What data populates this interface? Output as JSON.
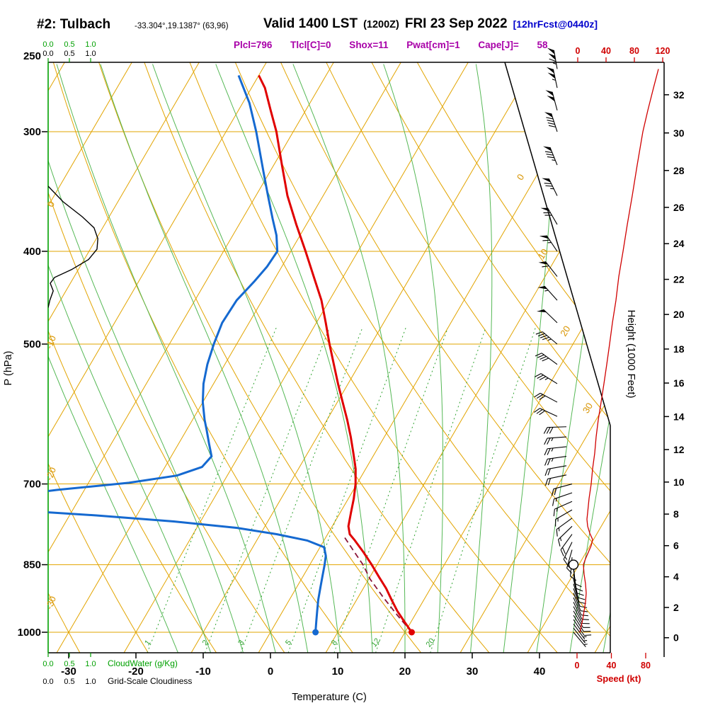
{
  "header": {
    "station": "#2: Tulbach",
    "coords": "-33.304°,19.1387° (63,96)",
    "valid": "Valid 1400 LST",
    "valid_z": "(1200Z)",
    "valid_date": "FRI 23 Sep 2022",
    "fcst_tag": "[12hrFcst@0440z]",
    "params": "Plcl=796 Tlcl[C]=0 Shox=11 Pwat[cm]=1 Cape[J]= 58"
  },
  "colors": {
    "grid_orange": "#E2A400",
    "label_orange": "#D89400",
    "moist_green": "#55B855",
    "mix_green": "#33A433",
    "axis_green": "#00A000",
    "temp_red": "#E00000",
    "dewp_blue": "#1569D0",
    "parcel": "#8A1538",
    "speed_red": "#D00000",
    "magenta": "#A800A8",
    "fcst_blue": "#0000CC",
    "black": "#000000"
  },
  "axes": {
    "pressure_label": "P (hPa)",
    "pressure_ticks": [
      250,
      300,
      400,
      500,
      700,
      850,
      1000
    ],
    "temp_label": "Temperature (C)",
    "temp_ticks": [
      -30,
      -20,
      -10,
      0,
      10,
      20,
      30,
      40
    ],
    "height_label": "Height (1000 Feet)",
    "height_ticks": [
      0,
      2,
      4,
      6,
      8,
      10,
      12,
      14,
      16,
      18,
      20,
      22,
      24,
      26,
      28,
      30,
      32
    ],
    "speed_label": "Speed (kt)",
    "speed_ticks_top": [
      0,
      40,
      80,
      120
    ],
    "speed_ticks_bottom": [
      0,
      40,
      80
    ],
    "cloud_scale": [
      "0.0",
      "0.5",
      "1.0"
    ],
    "cloudwater_label": "CloudWater (g/Kg)",
    "cloudiness_label": "Grid-Scale Cloudiness",
    "dry_adiabat_labels": [
      10,
      0,
      -10,
      -20,
      -30
    ],
    "isotherm_edge_labels": [
      0,
      10,
      20,
      30
    ],
    "mixing_ratio_labels": [
      1,
      2,
      3,
      5,
      8,
      12,
      20
    ]
  },
  "chart_data": {
    "type": "skewt",
    "title": "#2: Tulbach  Valid 1400 LST (1200Z) FRI 23 Sep 2022 [12hrFcst@0440z]",
    "pressure_range_hpa": [
      1050,
      254
    ],
    "surface": {
      "pressure_hpa": 1000,
      "temp_c": 21,
      "dewpoint_c": 6.7
    },
    "indices": {
      "Plcl": 796,
      "Tlcl_C": 0,
      "Shox": 11,
      "Pwat_cm": 1,
      "Cape_J": 58
    },
    "background": {
      "isotherm_min": -90,
      "isotherm_max": 50,
      "isotherm_step": 10,
      "dry_adiabat_min": -40,
      "dry_adiabat_max": 90,
      "moist_adiabat_min": -15,
      "moist_adiabat_max": 50,
      "mixing_ratios": [
        1,
        2,
        3,
        5,
        8,
        12,
        20
      ]
    },
    "temperature_c": [
      [
        1000,
        21
      ],
      [
        975,
        19
      ],
      [
        950,
        17
      ],
      [
        925,
        15.2
      ],
      [
        900,
        13.4
      ],
      [
        875,
        11.3
      ],
      [
        850,
        9.2
      ],
      [
        825,
        6.9
      ],
      [
        800,
        4.4
      ],
      [
        790,
        3.3
      ],
      [
        775,
        2.4
      ],
      [
        750,
        1.6
      ],
      [
        725,
        0.8
      ],
      [
        700,
        -0.2
      ],
      [
        675,
        -1.5
      ],
      [
        650,
        -3.2
      ],
      [
        625,
        -5
      ],
      [
        600,
        -7
      ],
      [
        575,
        -9.2
      ],
      [
        550,
        -11.5
      ],
      [
        525,
        -13.8
      ],
      [
        500,
        -16.2
      ],
      [
        475,
        -18.6
      ],
      [
        450,
        -21.2
      ],
      [
        425,
        -24.4
      ],
      [
        400,
        -27.8
      ],
      [
        375,
        -31.5
      ],
      [
        350,
        -35.3
      ],
      [
        325,
        -38.8
      ],
      [
        300,
        -42.5
      ],
      [
        285,
        -45.2
      ],
      [
        270,
        -48
      ],
      [
        262,
        -50
      ]
    ],
    "dewpoint_c": [
      [
        1000,
        6.7
      ],
      [
        975,
        5.9
      ],
      [
        950,
        5.1
      ],
      [
        925,
        4.3
      ],
      [
        900,
        3.6
      ],
      [
        875,
        2.9
      ],
      [
        850,
        2.2
      ],
      [
        832,
        1.6
      ],
      [
        815,
        0.6
      ],
      [
        802,
        -2.5
      ],
      [
        790,
        -7.5
      ],
      [
        778,
        -14
      ],
      [
        766,
        -24
      ],
      [
        755,
        -36
      ],
      [
        746,
        -48
      ],
      [
        736,
        -54
      ],
      [
        722,
        -52
      ],
      [
        710,
        -44
      ],
      [
        698,
        -34
      ],
      [
        686,
        -27.5
      ],
      [
        672,
        -24.5
      ],
      [
        655,
        -24
      ],
      [
        635,
        -25.5
      ],
      [
        615,
        -27
      ],
      [
        600,
        -28.2
      ],
      [
        575,
        -30
      ],
      [
        550,
        -31.5
      ],
      [
        525,
        -32.6
      ],
      [
        500,
        -33.4
      ],
      [
        475,
        -34
      ],
      [
        450,
        -33.8
      ],
      [
        430,
        -32.8
      ],
      [
        415,
        -32.2
      ],
      [
        400,
        -32
      ],
      [
        385,
        -33.5
      ],
      [
        370,
        -35.5
      ],
      [
        350,
        -38.2
      ],
      [
        330,
        -41
      ],
      [
        300,
        -45.5
      ],
      [
        280,
        -49
      ],
      [
        262,
        -53
      ]
    ],
    "parcel_c": [
      [
        1000,
        21
      ],
      [
        960,
        17.4
      ],
      [
        920,
        13.8
      ],
      [
        880,
        10.2
      ],
      [
        850,
        7.9
      ],
      [
        820,
        5.1
      ],
      [
        796,
        2.8
      ]
    ],
    "cloud_fraction": [
      [
        342,
        0
      ],
      [
        355,
        0.35
      ],
      [
        368,
        0.8
      ],
      [
        378,
        1.08
      ],
      [
        388,
        1.17
      ],
      [
        398,
        1.15
      ],
      [
        408,
        0.95
      ],
      [
        418,
        0.55
      ],
      [
        426,
        0.15
      ],
      [
        432,
        0.05
      ],
      [
        440,
        0.12
      ],
      [
        450,
        0.04
      ],
      [
        458,
        0
      ]
    ],
    "wind_speed_kt": [
      [
        1000,
        3
      ],
      [
        985,
        5
      ],
      [
        970,
        7
      ],
      [
        950,
        9
      ],
      [
        930,
        11
      ],
      [
        910,
        12
      ],
      [
        890,
        11
      ],
      [
        870,
        9
      ],
      [
        850,
        8
      ],
      [
        838,
        11
      ],
      [
        825,
        15
      ],
      [
        812,
        19
      ],
      [
        800,
        21
      ],
      [
        788,
        17
      ],
      [
        775,
        14
      ],
      [
        762,
        13
      ],
      [
        750,
        14
      ],
      [
        725,
        16
      ],
      [
        700,
        19
      ],
      [
        675,
        21
      ],
      [
        650,
        24
      ],
      [
        625,
        26
      ],
      [
        600,
        29
      ],
      [
        575,
        33
      ],
      [
        550,
        37
      ],
      [
        525,
        41
      ],
      [
        500,
        45
      ],
      [
        475,
        49
      ],
      [
        450,
        54
      ],
      [
        425,
        58
      ],
      [
        400,
        64
      ],
      [
        375,
        70
      ],
      [
        350,
        77
      ],
      [
        325,
        84
      ],
      [
        300,
        92
      ],
      [
        285,
        99
      ],
      [
        270,
        107
      ],
      [
        258,
        114
      ]
    ],
    "wind_barbs": [
      [
        1000,
        5,
        140
      ],
      [
        990,
        6,
        142
      ],
      [
        980,
        7,
        144
      ],
      [
        970,
        8,
        146
      ],
      [
        960,
        9,
        148
      ],
      [
        950,
        10,
        150
      ],
      [
        940,
        10,
        152
      ],
      [
        930,
        11,
        154
      ],
      [
        920,
        11,
        156
      ],
      [
        910,
        12,
        158
      ],
      [
        900,
        12,
        160
      ],
      [
        890,
        11,
        163
      ],
      [
        880,
        10,
        166
      ],
      [
        870,
        10,
        169
      ],
      [
        860,
        9,
        172
      ],
      [
        850,
        8,
        175
      ],
      [
        835,
        10,
        185
      ],
      [
        820,
        13,
        196
      ],
      [
        805,
        16,
        206
      ],
      [
        790,
        18,
        216
      ],
      [
        775,
        16,
        226
      ],
      [
        760,
        14,
        234
      ],
      [
        745,
        14,
        240
      ],
      [
        730,
        15,
        246
      ],
      [
        715,
        17,
        251
      ],
      [
        700,
        19,
        255
      ],
      [
        685,
        20,
        258
      ],
      [
        670,
        22,
        260
      ],
      [
        655,
        23,
        262
      ],
      [
        640,
        25,
        264
      ],
      [
        625,
        26,
        266
      ],
      [
        610,
        28,
        268
      ],
      [
        595,
        29,
        295
      ],
      [
        575,
        32,
        298
      ],
      [
        550,
        37,
        302
      ],
      [
        525,
        41,
        306
      ],
      [
        500,
        45,
        310
      ],
      [
        475,
        49,
        314
      ],
      [
        450,
        54,
        318
      ],
      [
        425,
        59,
        322
      ],
      [
        400,
        64,
        326
      ],
      [
        375,
        70,
        330
      ],
      [
        350,
        77,
        334
      ],
      [
        325,
        85,
        338
      ],
      [
        300,
        92,
        342
      ],
      [
        285,
        99,
        345
      ],
      [
        270,
        107,
        348
      ],
      [
        258,
        114,
        350
      ]
    ]
  }
}
